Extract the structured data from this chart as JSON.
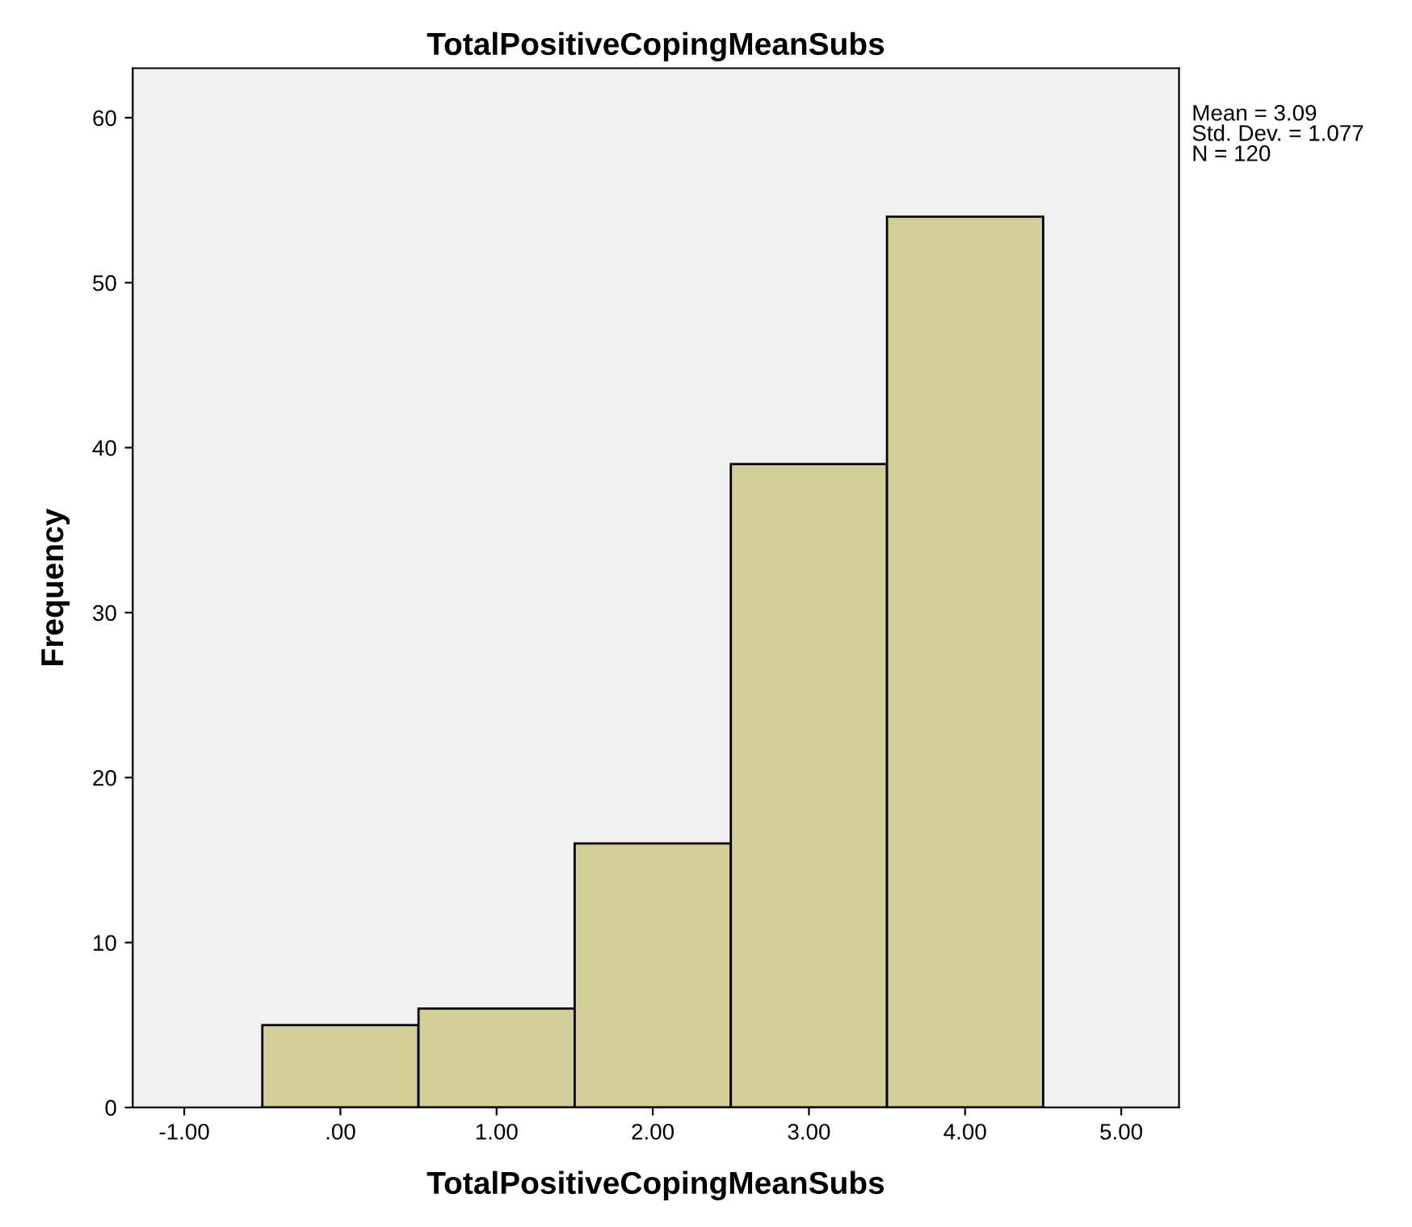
{
  "chart_data": {
    "type": "histogram",
    "title": "TotalPositiveCopingMeanSubs",
    "xlabel": "TotalPositiveCopingMeanSubs",
    "ylabel": "Frequency",
    "bins": [
      -0.5,
      0.5,
      1.5,
      2.5,
      3.5,
      4.5
    ],
    "values": [
      5,
      6,
      16,
      39,
      54
    ],
    "color": "#d3ce97",
    "xlim": [
      -1.33,
      5.37
    ],
    "ylim": [
      0,
      63
    ],
    "xticks": [
      {
        "value": -1,
        "label": "-1.00"
      },
      {
        "value": 0,
        "label": ".00"
      },
      {
        "value": 1,
        "label": "1.00"
      },
      {
        "value": 2,
        "label": "2.00"
      },
      {
        "value": 3,
        "label": "3.00"
      },
      {
        "value": 4,
        "label": "4.00"
      },
      {
        "value": 5,
        "label": "5.00"
      }
    ],
    "yticks": [
      0,
      10,
      20,
      30,
      40,
      50,
      60
    ],
    "annotations": [
      "Mean = 3.09",
      "Std. Dev. = 1.077",
      "N = 120"
    ],
    "grid": false,
    "legend": false
  }
}
